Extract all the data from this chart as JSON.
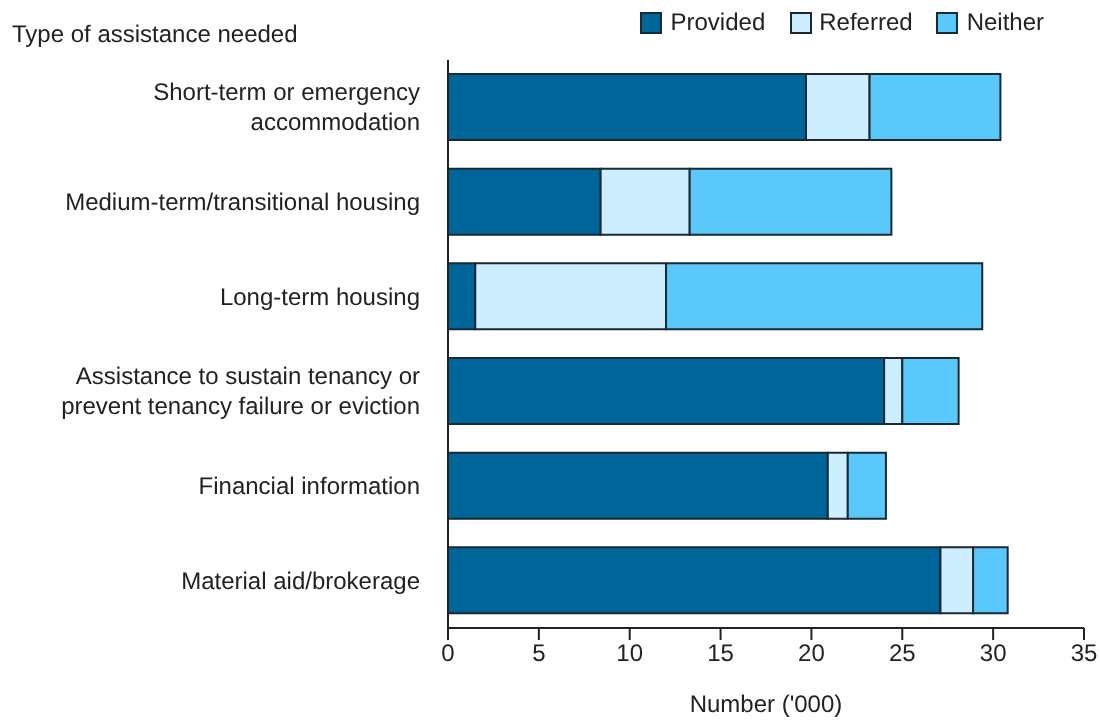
{
  "chart_data": {
    "type": "bar",
    "orientation": "horizontal",
    "stacked": true,
    "ylabel": "Type of assistance needed",
    "xlabel": "Number ('000)",
    "categories": [
      "Short-term or emergency accommodation",
      "Medium-term/transitional housing",
      "Long-term housing",
      "Assistance to sustain tenancy or prevent tenancy failure or eviction",
      "Financial information",
      "Material aid/brokerage"
    ],
    "series": [
      {
        "name": "Provided",
        "color": "#006699",
        "values": [
          19.7,
          8.4,
          1.5,
          24.0,
          20.9,
          27.1
        ]
      },
      {
        "name": "Referred",
        "color": "#cceeff",
        "values": [
          3.5,
          4.9,
          10.5,
          1.0,
          1.1,
          1.8
        ]
      },
      {
        "name": "Neither",
        "color": "#5bc8fb",
        "values": [
          7.2,
          11.1,
          17.4,
          3.1,
          2.1,
          1.9
        ]
      }
    ],
    "xlim": [
      0,
      35
    ],
    "xticks": [
      0,
      5,
      10,
      15,
      20,
      25,
      30,
      35
    ],
    "legend": "top right"
  }
}
